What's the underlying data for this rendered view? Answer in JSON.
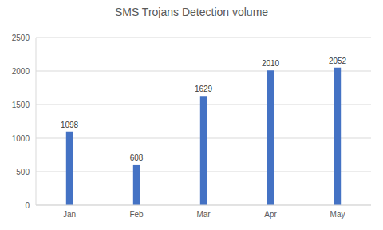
{
  "chart_data": {
    "type": "bar",
    "title": "SMS Trojans Detection volume",
    "categories": [
      "Jan",
      "Feb",
      "Mar",
      "Apr",
      "May"
    ],
    "values": [
      1098,
      608,
      1629,
      2010,
      2052
    ],
    "color": "#4472c4",
    "ylim": [
      0,
      2500
    ],
    "yticks": [
      0,
      500,
      1000,
      1500,
      2000,
      2500
    ],
    "grid": true,
    "data_labels": true
  }
}
